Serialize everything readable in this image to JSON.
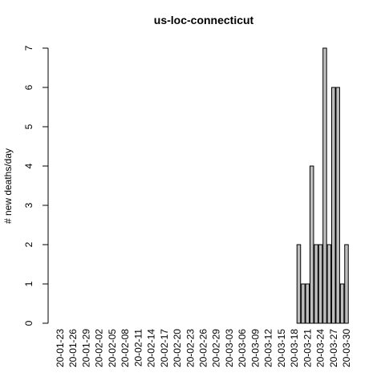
{
  "chart_data": {
    "type": "bar",
    "title": "us-loc-connecticut",
    "y_label": "# new deaths/day",
    "categories": [
      "20-01-23",
      null,
      null,
      "20-01-26",
      null,
      null,
      "20-01-29",
      null,
      null,
      "20-02-02",
      null,
      null,
      "20-02-05",
      null,
      null,
      "20-02-08",
      null,
      null,
      "20-02-11",
      null,
      null,
      "20-02-14",
      null,
      null,
      "20-02-17",
      null,
      null,
      "20-02-20",
      null,
      null,
      "20-02-23",
      null,
      null,
      "20-02-26",
      null,
      null,
      "20-02-29",
      null,
      null,
      "20-03-03",
      null,
      null,
      "20-03-06",
      null,
      null,
      "20-03-09",
      null,
      null,
      "20-03-12",
      null,
      null,
      "20-03-15",
      null,
      null,
      "20-03-18",
      null,
      null,
      "20-03-21",
      null,
      null,
      "20-03-24",
      null,
      null,
      "20-03-27",
      null,
      null,
      "20-03-30"
    ],
    "values": [
      0,
      0,
      0,
      0,
      0,
      0,
      0,
      0,
      0,
      0,
      0,
      0,
      0,
      0,
      0,
      0,
      0,
      0,
      0,
      0,
      0,
      0,
      0,
      0,
      0,
      0,
      0,
      0,
      0,
      0,
      0,
      0,
      0,
      0,
      0,
      0,
      0,
      0,
      0,
      0,
      0,
      0,
      0,
      0,
      0,
      0,
      0,
      0,
      0,
      0,
      0,
      0,
      0,
      0,
      0,
      2,
      1,
      1,
      4,
      2,
      2,
      7,
      2,
      6,
      6,
      1,
      2
    ],
    "color": "#bebebe",
    "ylim": [
      0,
      7
    ],
    "yticks": [
      0,
      1,
      2,
      3,
      4,
      5,
      6,
      7
    ]
  }
}
